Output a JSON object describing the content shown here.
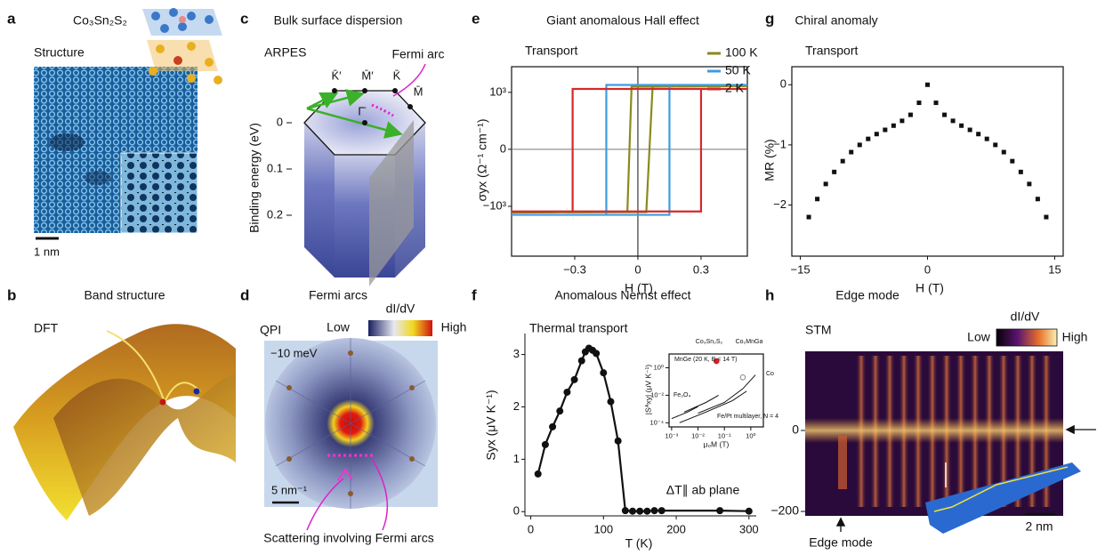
{
  "panels": {
    "a": {
      "label": "a",
      "compound": "Co₃Sn₂S₂",
      "title": "Structure",
      "scale_bar": "1 nm"
    },
    "b": {
      "label": "b",
      "title": "Band structure",
      "method": "DFT"
    },
    "c": {
      "label": "c",
      "title": "Bulk surface dispersion",
      "method": "ARPES",
      "annotation": "Fermi arc",
      "points": [
        "K̄′",
        "M̄′",
        "K̄",
        "M̄",
        "Γ̄"
      ],
      "ylabel": "Binding energy (eV)",
      "yticks": [
        0,
        0.1,
        0.2
      ]
    },
    "d": {
      "label": "d",
      "title": "Fermi arcs",
      "method": "QPI",
      "colorbar": "dI/dV",
      "low": "Low",
      "high": "High",
      "energy": "−10 meV",
      "scale_bar": "5 nm⁻¹",
      "annotation": "Scattering involving Fermi arcs"
    },
    "h": {
      "label": "h",
      "title": "Edge mode",
      "method": "STM",
      "colorbar": "dI/dV",
      "low": "Low",
      "high": "High",
      "yticks": [
        0,
        {
          "value": -200,
          "label": "−200"
        }
      ],
      "annotation": "Edge mode",
      "scale_bar": "2 nm"
    }
  },
  "chart_data": [
    {
      "label": "e",
      "type": "line",
      "title": "Giant anomalous Hall effect",
      "annotation": "Transport",
      "xlabel": "H (T)",
      "ylabel": "σyx (Ω⁻¹ cm⁻¹)",
      "xlim": [
        -0.6,
        0.52
      ],
      "ylim": [
        -1875,
        1450
      ],
      "xticks": [
        {
          "value": -0.3,
          "label": "−0.3"
        },
        0,
        0.3
      ],
      "yticks": [
        {
          "value": 1000,
          "label": "10³"
        },
        0,
        {
          "value": -1000,
          "label": "−10³"
        }
      ],
      "zero_lines": true,
      "legend": "upper right",
      "series": [
        {
          "name": "100 K",
          "color": "#8a8a1c",
          "x": [
            -0.6,
            0.04,
            0.07,
            0.52,
            -0.03,
            -0.05,
            -0.6
          ],
          "values": [
            -1110,
            -1100,
            1100,
            1110,
            1100,
            -1100,
            -1110
          ]
        },
        {
          "name": "50 K",
          "color": "#3d9de0",
          "x": [
            -0.6,
            0.15,
            0.15,
            0.52,
            -0.15,
            -0.15,
            -0.6
          ],
          "values": [
            -1150,
            -1150,
            1130,
            1130,
            1130,
            -1150,
            -1150
          ]
        },
        {
          "name": "2 K",
          "color": "#d42a2a",
          "x": [
            -0.6,
            0.3,
            0.3,
            0.52,
            -0.31,
            -0.31,
            -0.6
          ],
          "values": [
            -1090,
            -1090,
            1060,
            1060,
            1060,
            -1090,
            -1090
          ]
        }
      ]
    },
    {
      "label": "f",
      "type": "line",
      "marker": "circle",
      "color": "#111111",
      "title": "Anomalous Nernst effect",
      "annotation": "Thermal transport",
      "note": "ΔT∥ ab plane",
      "xlabel": "T (K)",
      "ylabel": "Syx (μV K⁻¹)",
      "xlim": [
        -8,
        310
      ],
      "ylim": [
        -0.08,
        3.4
      ],
      "xticks": [
        0,
        100,
        200,
        300
      ],
      "yticks": [
        0,
        1,
        2,
        3
      ],
      "x": [
        10,
        20,
        30,
        40,
        50,
        60,
        70,
        75,
        80,
        85,
        90,
        100,
        110,
        120,
        130,
        140,
        150,
        160,
        170,
        180,
        260,
        300
      ],
      "values": [
        0.72,
        1.28,
        1.62,
        1.92,
        2.28,
        2.52,
        2.88,
        3.05,
        3.12,
        3.08,
        3.02,
        2.65,
        2.1,
        1.35,
        0.02,
        0.01,
        0.01,
        0.01,
        0.02,
        0.02,
        0.02,
        0.01
      ]
    },
    {
      "label": "g",
      "type": "scatter",
      "marker": "square",
      "color": "#111111",
      "title": "Chiral anomaly",
      "annotation": "Transport",
      "xlabel": "H (T)",
      "ylabel": "MR (%)",
      "xlim": [
        -16,
        16
      ],
      "ylim": [
        -2.85,
        0.3
      ],
      "xticks": [
        {
          "value": -15,
          "label": "−15"
        },
        0,
        15
      ],
      "yticks": [
        {
          "value": -2,
          "label": "−2"
        },
        {
          "value": -1,
          "label": "−1"
        },
        0
      ],
      "x": [
        -14,
        -13,
        -12,
        -11,
        -10,
        -9,
        -8,
        -7,
        -6,
        -5,
        -4,
        -3,
        -2,
        -1,
        0,
        1,
        2,
        3,
        4,
        5,
        6,
        7,
        8,
        9,
        10,
        11,
        12,
        13,
        14
      ],
      "values": [
        -2.2,
        -1.9,
        -1.65,
        -1.45,
        -1.27,
        -1.12,
        -1.0,
        -0.9,
        -0.82,
        -0.75,
        -0.68,
        -0.6,
        -0.5,
        -0.3,
        0,
        -0.3,
        -0.5,
        -0.6,
        -0.68,
        -0.75,
        -0.82,
        -0.9,
        -1.0,
        -1.12,
        -1.27,
        -1.45,
        -1.65,
        -1.9,
        -2.2
      ]
    },
    {
      "type": "line",
      "log_x": true,
      "log_y": true,
      "color": "#111111",
      "xlabel": "μ₀M (T)",
      "ylabel": "|Sᴬxy| (μV K⁻¹)",
      "xlim": [
        0.0008,
        3
      ],
      "ylim": [
        5e-05,
        10
      ],
      "xticks": [
        {
          "value": 0.001,
          "label": "10⁻³"
        },
        {
          "value": 0.01,
          "label": "10⁻²"
        },
        {
          "value": 0.1,
          "label": "10⁻¹"
        },
        {
          "value": 1,
          "label": "10⁰"
        }
      ],
      "yticks": [
        {
          "value": 0.0001,
          "label": "10⁻⁴"
        },
        {
          "value": 0.01,
          "label": "10⁻²"
        },
        {
          "value": 1,
          "label": "10⁰"
        }
      ],
      "series": [
        {
          "name": "Co₃Sn₂S₂",
          "color": "#d42020",
          "marker": "filled",
          "x": [
            0.05
          ],
          "values": [
            3
          ]
        },
        {
          "name": "Co₂MnGa",
          "color": "#888888",
          "marker": "open",
          "x": [
            0.5
          ],
          "values": [
            0.2
          ]
        },
        {
          "name": "MnGe (20 K, B < 14 T)",
          "x": [
            0.003,
            0.02,
            0.06
          ],
          "values": [
            0.0006,
            0.003,
            0.01
          ]
        },
        {
          "name": "Fe₃O₄",
          "x": [
            0.001,
            0.004,
            0.01
          ],
          "values": [
            0.0002,
            0.0006,
            0.0015
          ]
        },
        {
          "name": "Fe/Pt multilayer, N = 4",
          "x": [
            0.002,
            0.02,
            0.2,
            0.7
          ],
          "values": [
            0.0001,
            0.0006,
            0.004,
            0.02
          ]
        },
        {
          "name": "Co",
          "x": [
            0.01,
            0.1,
            0.5,
            1.5
          ],
          "values": [
            0.0005,
            0.003,
            0.03,
            0.3
          ]
        }
      ]
    }
  ]
}
